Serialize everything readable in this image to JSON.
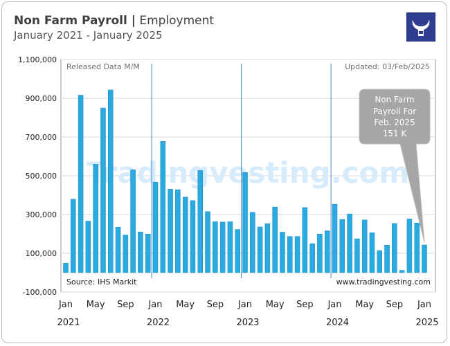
{
  "header": {
    "title_bold": "Non Farm Payroll |",
    "title_rest": " Employment",
    "subtitle": "January 2021 - January 2025"
  },
  "logo": {
    "icon": "bull-horns-icon"
  },
  "panel": {
    "top_left_note": "Released Data M/M",
    "top_right_note": "Updated: 03/Feb/2025",
    "bottom_left_note": "Source: IHS Markit",
    "bottom_right_note": "www.tradingvesting.com",
    "watermark": "Tradingvesting.com"
  },
  "callout": {
    "lines": [
      "Non Farm",
      "Payroll  For",
      "Feb. 2025",
      "151 K"
    ]
  },
  "colors": {
    "bar": "#29abe2",
    "bar_stroke": "#1a86b8",
    "callout_fill": "#a6a6a6",
    "watermark": "#d6ebfb",
    "year_divider": "#4a86c8"
  },
  "chart_data": {
    "type": "bar",
    "title": "Non Farm Payroll | Employment",
    "subtitle": "January 2021 - January 2025",
    "ylim": [
      -100000,
      1100000
    ],
    "yticks": [
      -100000,
      100000,
      300000,
      500000,
      700000,
      900000,
      1100000
    ],
    "ytick_labels": [
      "-100,000",
      "100,000",
      "300,000",
      "500,000",
      "700,000",
      "900,000",
      "1,100,000"
    ],
    "grid": true,
    "x_tick_labels": [
      {
        "label": "Jan",
        "index": 0
      },
      {
        "label": "May",
        "index": 4
      },
      {
        "label": "Sep",
        "index": 8
      },
      {
        "label": "Jan",
        "index": 12
      },
      {
        "label": "May",
        "index": 16
      },
      {
        "label": "Sep",
        "index": 20
      },
      {
        "label": "Jan",
        "index": 24
      },
      {
        "label": "May",
        "index": 28
      },
      {
        "label": "Sep",
        "index": 32
      },
      {
        "label": "Jan",
        "index": 36
      },
      {
        "label": "May",
        "index": 40
      },
      {
        "label": "Sep",
        "index": 44
      },
      {
        "label": "Jan",
        "index": 48
      }
    ],
    "year_labels": [
      {
        "label": "2021",
        "index": 0
      },
      {
        "label": "2022",
        "index": 12
      },
      {
        "label": "2023",
        "index": 24
      },
      {
        "label": "2024",
        "index": 36
      },
      {
        "label": "2025",
        "index": 48
      }
    ],
    "year_dividers_after_index": [
      11,
      23,
      35
    ],
    "categories": [
      "Jan 2021",
      "Feb 2021",
      "Mar 2021",
      "Apr 2021",
      "May 2021",
      "Jun 2021",
      "Jul 2021",
      "Aug 2021",
      "Sep 2021",
      "Oct 2021",
      "Nov 2021",
      "Dec 2021",
      "Jan 2022",
      "Feb 2022",
      "Mar 2022",
      "Apr 2022",
      "May 2022",
      "Jun 2022",
      "Jul 2022",
      "Aug 2022",
      "Sep 2022",
      "Oct 2022",
      "Nov 2022",
      "Dec 2022",
      "Jan 2023",
      "Feb 2023",
      "Mar 2023",
      "Apr 2023",
      "May 2023",
      "Jun 2023",
      "Jul 2023",
      "Aug 2023",
      "Sep 2023",
      "Oct 2023",
      "Nov 2023",
      "Dec 2023",
      "Jan 2024",
      "Feb 2024",
      "Mar 2024",
      "Apr 2024",
      "May 2024",
      "Jun 2024",
      "Jul 2024",
      "Aug 2024",
      "Sep 2024",
      "Oct 2024",
      "Nov 2024",
      "Dec 2024",
      "Jan 2025"
    ],
    "values": [
      49000,
      379000,
      916000,
      266000,
      559000,
      850000,
      943000,
      235000,
      194000,
      531000,
      210000,
      199000,
      467000,
      678000,
      431000,
      428000,
      390000,
      372000,
      528000,
      315000,
      263000,
      261000,
      263000,
      223000,
      517000,
      311000,
      236000,
      253000,
      339000,
      209000,
      187000,
      187000,
      336000,
      150000,
      199000,
      216000,
      353000,
      275000,
      303000,
      175000,
      272000,
      206000,
      114000,
      142000,
      254000,
      12000,
      277000,
      256000,
      143000
    ],
    "latest_value": 151000
  }
}
